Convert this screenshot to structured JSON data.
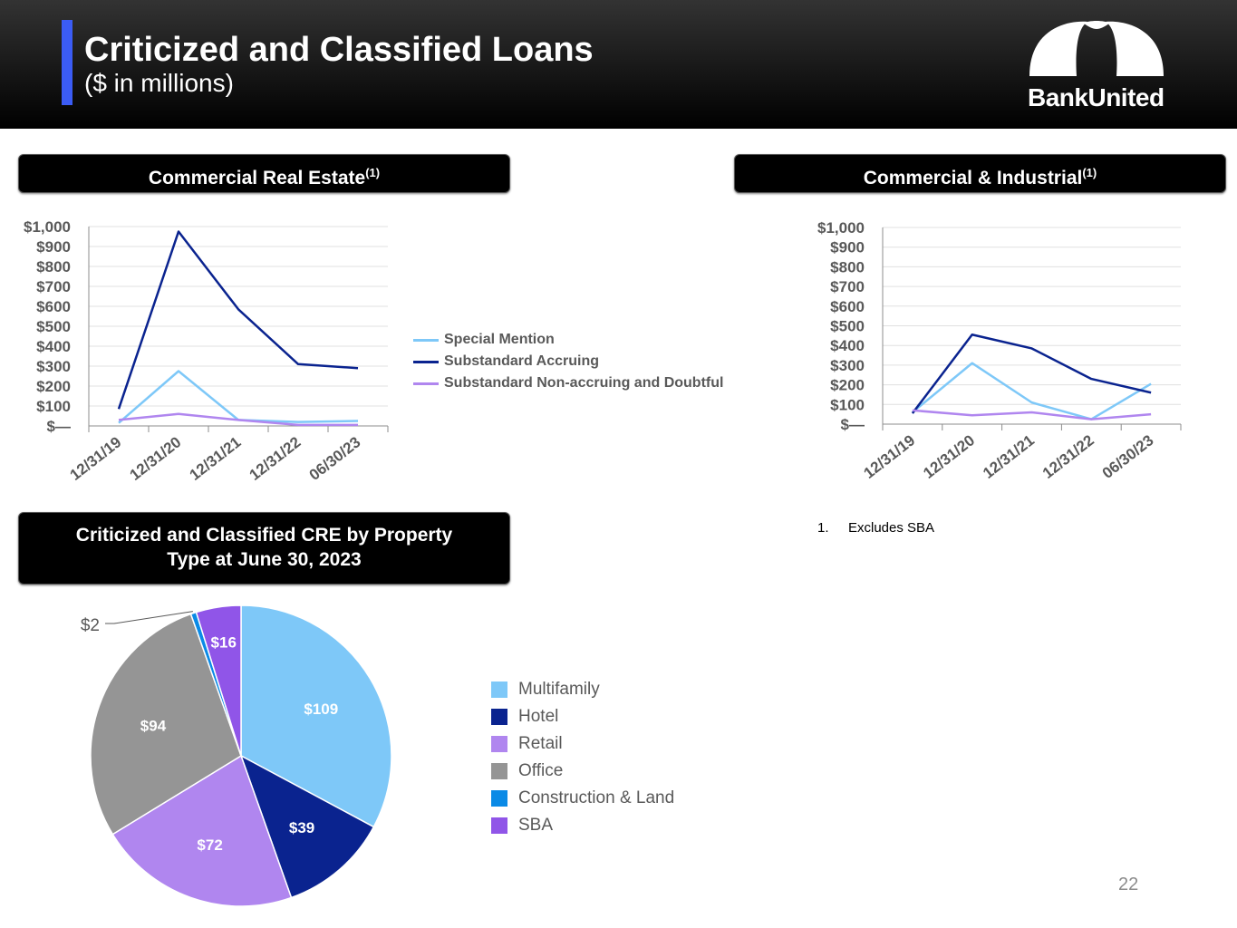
{
  "header": {
    "title": "Criticized and Classified Loans",
    "subtitle": "($ in millions)",
    "logo_text": "BankUnited",
    "accent_color": "#3b5cf5"
  },
  "sections": {
    "cre_title": "Commercial Real Estate",
    "ci_title": "Commercial & Industrial",
    "pie_title_line1": "Criticized and Classified CRE by Property",
    "pie_title_line2": "Type at June 30, 2023",
    "footnote_marker": "(1)"
  },
  "legend": {
    "special_mention": "Special Mention",
    "substandard_accruing": "Substandard Accruing",
    "substandard_nonaccruing": "Substandard Non-accruing and Doubtful"
  },
  "footnote": {
    "number": "1.",
    "text": "Excludes SBA"
  },
  "page_number": "22",
  "chart_data": [
    {
      "type": "line",
      "title": "Commercial Real Estate(1)",
      "categories": [
        "12/31/19",
        "12/31/20",
        "12/31/21",
        "12/31/22",
        "06/30/23"
      ],
      "yticks": [
        "$—",
        "$100",
        "$200",
        "$300",
        "$400",
        "$500",
        "$600",
        "$700",
        "$800",
        "$900",
        "$1,000"
      ],
      "ylim": [
        0,
        1000
      ],
      "grid": true,
      "legend_position": "right",
      "series": [
        {
          "name": "Special Mention",
          "color": "#7ec8f8",
          "values": [
            15,
            275,
            30,
            20,
            25
          ]
        },
        {
          "name": "Substandard Accruing",
          "color": "#0a238f",
          "values": [
            85,
            975,
            585,
            310,
            290
          ]
        },
        {
          "name": "Substandard Non-accruing and Doubtful",
          "color": "#b086ef",
          "values": [
            30,
            60,
            30,
            5,
            5
          ]
        }
      ]
    },
    {
      "type": "line",
      "title": "Commercial & Industrial(1)",
      "categories": [
        "12/31/19",
        "12/31/20",
        "12/31/21",
        "12/31/22",
        "06/30/23"
      ],
      "yticks": [
        "$—",
        "$100",
        "$200",
        "$300",
        "$400",
        "$500",
        "$600",
        "$700",
        "$800",
        "$900",
        "$1,000"
      ],
      "ylim": [
        0,
        1000
      ],
      "grid": true,
      "series": [
        {
          "name": "Special Mention",
          "color": "#7ec8f8",
          "values": [
            60,
            310,
            110,
            25,
            205
          ]
        },
        {
          "name": "Substandard Accruing",
          "color": "#0a238f",
          "values": [
            55,
            455,
            385,
            230,
            160
          ]
        },
        {
          "name": "Substandard Non-accruing and Doubtful",
          "color": "#b086ef",
          "values": [
            70,
            45,
            60,
            25,
            50
          ]
        }
      ]
    },
    {
      "type": "pie",
      "title": "Criticized and Classified CRE by Property Type at June 30, 2023",
      "legend_position": "right",
      "slices": [
        {
          "name": "Multifamily",
          "value": 109,
          "label": "$109",
          "color": "#7ec8f8"
        },
        {
          "name": "Hotel",
          "value": 39,
          "label": "$39",
          "color": "#0a238f"
        },
        {
          "name": "Retail",
          "value": 72,
          "label": "$72",
          "color": "#b086ef"
        },
        {
          "name": "Office",
          "value": 94,
          "label": "$94",
          "color": "#959595"
        },
        {
          "name": "Construction & Land",
          "value": 2,
          "label": "$2",
          "color": "#0a8ae6"
        },
        {
          "name": "SBA",
          "value": 16,
          "label": "$16",
          "color": "#9055e8"
        }
      ]
    }
  ]
}
